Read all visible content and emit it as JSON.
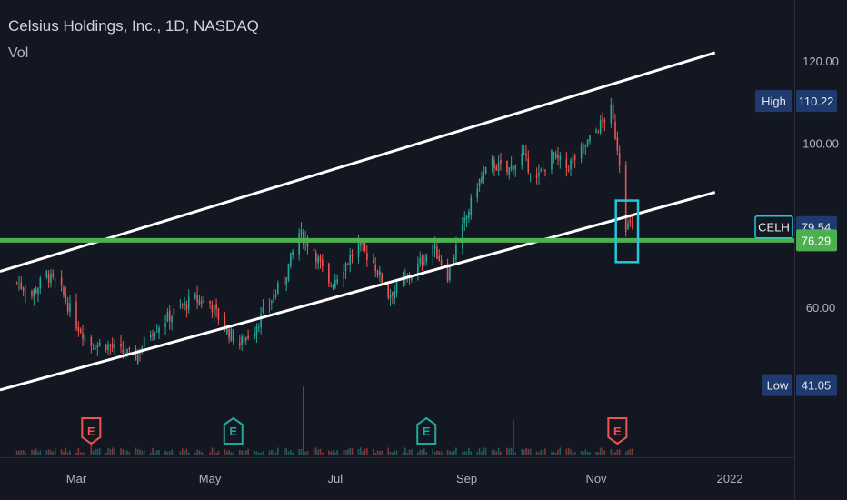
{
  "header": {
    "title": "Celsius Holdings, Inc., 1D, NASDAQ",
    "volume_label": "Vol"
  },
  "colors": {
    "background": "#131722",
    "up": "#26a69a",
    "down": "#ef5350",
    "trendline": "#ffffff",
    "support_line": "#4caf50",
    "highlight_box": "#26c6da",
    "label_bg": "#1e3a6e",
    "earnings_down": "#ef5350",
    "earnings_up": "#26a69a"
  },
  "chart_data": {
    "type": "candlestick",
    "symbol": "CELH",
    "x_ticks": [
      {
        "label": "Mar",
        "date": "2021-03-01"
      },
      {
        "label": "May",
        "date": "2021-05-03"
      },
      {
        "label": "Jul",
        "date": "2021-07-01"
      },
      {
        "label": "Sep",
        "date": "2021-09-01"
      },
      {
        "label": "Nov",
        "date": "2021-11-01"
      },
      {
        "label": "2022",
        "date": "2022-01-03"
      }
    ],
    "y_ticks": [
      "120.00",
      "100.00",
      "60.00"
    ],
    "y_tick_values": [
      120,
      100,
      60
    ],
    "price_labels": [
      {
        "name": "High",
        "value": 110.22,
        "text": "110.22"
      },
      {
        "name": "CELH",
        "value": 79.54,
        "text": "79.54"
      },
      {
        "name": "",
        "value": 76.29,
        "text": "76.29"
      },
      {
        "name": "Low",
        "value": 41.05,
        "text": "41.05"
      }
    ],
    "high": 110.22,
    "low": 41.05,
    "last": 79.54,
    "support_level": 76.29,
    "closes": [
      [
        "2021-02-01",
        66
      ],
      [
        "2021-02-08",
        63
      ],
      [
        "2021-02-15",
        68
      ],
      [
        "2021-02-22",
        64
      ],
      [
        "2021-03-01",
        56
      ],
      [
        "2021-03-08",
        51
      ],
      [
        "2021-03-15",
        51
      ],
      [
        "2021-03-22",
        49
      ],
      [
        "2021-03-29",
        48
      ],
      [
        "2021-04-05",
        54
      ],
      [
        "2021-04-12",
        57
      ],
      [
        "2021-04-19",
        60
      ],
      [
        "2021-04-26",
        62
      ],
      [
        "2021-05-03",
        61
      ],
      [
        "2021-05-10",
        55
      ],
      [
        "2021-05-17",
        51
      ],
      [
        "2021-05-24",
        55
      ],
      [
        "2021-05-31",
        61
      ],
      [
        "2021-06-07",
        67
      ],
      [
        "2021-06-14",
        78
      ],
      [
        "2021-06-21",
        74
      ],
      [
        "2021-06-28",
        65
      ],
      [
        "2021-07-05",
        70
      ],
      [
        "2021-07-12",
        75
      ],
      [
        "2021-07-19",
        71
      ],
      [
        "2021-07-26",
        63
      ],
      [
        "2021-08-02",
        66
      ],
      [
        "2021-08-09",
        70
      ],
      [
        "2021-08-16",
        75
      ],
      [
        "2021-08-23",
        68
      ],
      [
        "2021-08-30",
        79
      ],
      [
        "2021-09-06",
        90
      ],
      [
        "2021-09-13",
        95
      ],
      [
        "2021-09-20",
        93
      ],
      [
        "2021-09-27",
        97
      ],
      [
        "2021-10-04",
        91
      ],
      [
        "2021-10-11",
        97
      ],
      [
        "2021-10-18",
        94
      ],
      [
        "2021-10-25",
        98
      ],
      [
        "2021-11-01",
        103
      ],
      [
        "2021-11-08",
        108
      ],
      [
        "2021-11-12",
        96
      ],
      [
        "2021-11-15",
        80
      ],
      [
        "2021-11-18",
        79.54
      ]
    ],
    "volume_spikes": [
      [
        "2021-03-08",
        0.3
      ],
      [
        "2021-06-16",
        1.0
      ],
      [
        "2021-09-23",
        0.5
      ]
    ],
    "earnings_markers": [
      {
        "date": "2021-03-08",
        "direction": "down",
        "label": "E"
      },
      {
        "date": "2021-05-14",
        "direction": "up",
        "label": "E"
      },
      {
        "date": "2021-08-13",
        "direction": "up",
        "label": "E"
      },
      {
        "date": "2021-11-11",
        "direction": "down",
        "label": "E"
      }
    ],
    "annotations": {
      "channel_upper": [
        [
          "2021-02-01",
          70
        ],
        [
          "2021-12-27",
          122
        ]
      ],
      "channel_lower": [
        [
          "2021-02-01",
          41
        ],
        [
          "2021-12-27",
          88
        ]
      ],
      "support_line": 76.29,
      "highlight_box": {
        "start": "2021-11-12",
        "end": "2021-11-19",
        "low": 71,
        "high": 86
      }
    }
  }
}
